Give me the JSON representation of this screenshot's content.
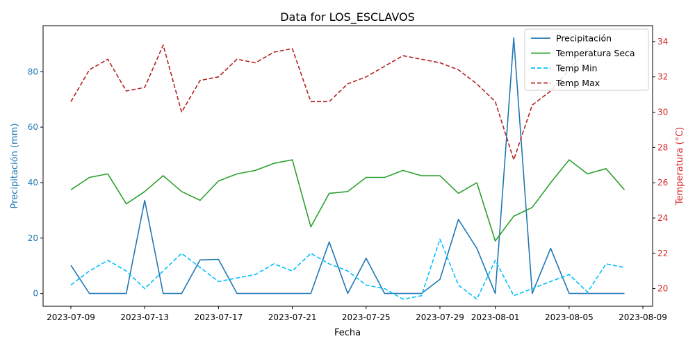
{
  "chart_data": {
    "type": "line",
    "title": "Data for LOS_ESCLAVOS",
    "xlabel": "Fecha",
    "ylabel_left": "Precipitación (mm)",
    "ylabel_right": "Temperatura (°C)",
    "left_axis_color": "#1f77b4",
    "right_axis_color": "#d62728",
    "dates": [
      "2023-07-09",
      "2023-07-10",
      "2023-07-11",
      "2023-07-12",
      "2023-07-13",
      "2023-07-14",
      "2023-07-15",
      "2023-07-16",
      "2023-07-17",
      "2023-07-18",
      "2023-07-19",
      "2023-07-20",
      "2023-07-21",
      "2023-07-22",
      "2023-07-23",
      "2023-07-24",
      "2023-07-25",
      "2023-07-26",
      "2023-07-27",
      "2023-07-28",
      "2023-07-29",
      "2023-07-30",
      "2023-07-31",
      "2023-08-01",
      "2023-08-02",
      "2023-08-03",
      "2023-08-04",
      "2023-08-05",
      "2023-08-06",
      "2023-08-07",
      "2023-08-08"
    ],
    "x_ticks": [
      "2023-07-09",
      "2023-07-13",
      "2023-07-17",
      "2023-07-21",
      "2023-07-25",
      "2023-07-29",
      "2023-08-01",
      "2023-08-05",
      "2023-08-09"
    ],
    "y_left_ticks": [
      0,
      20,
      40,
      60,
      80
    ],
    "y_left_range": [
      -4.6,
      96.6
    ],
    "y_right_ticks": [
      20,
      22,
      24,
      26,
      28,
      30,
      32,
      34
    ],
    "y_right_range": [
      19.0,
      34.9
    ],
    "legend_position": "top-right",
    "series": [
      {
        "name": "Precipitación",
        "axis": "left",
        "color": "#1f77b4",
        "dash": "solid",
        "values": [
          10.2,
          0,
          0,
          0,
          33.6,
          0,
          0,
          12.1,
          12.3,
          0,
          0,
          0,
          0,
          0,
          18.6,
          0,
          12.7,
          0,
          0,
          0,
          5.1,
          26.7,
          16.3,
          0,
          92.2,
          0,
          16.3,
          0,
          0,
          0,
          0
        ]
      },
      {
        "name": "Temperatura Seca",
        "axis": "right",
        "color": "#2ca02c",
        "dash": "solid",
        "values": [
          25.6,
          26.3,
          26.5,
          24.8,
          25.5,
          26.4,
          25.5,
          25.0,
          26.1,
          26.5,
          26.7,
          27.1,
          27.3,
          23.5,
          25.4,
          25.5,
          26.3,
          26.3,
          26.7,
          26.4,
          26.4,
          25.4,
          26.0,
          22.7,
          24.1,
          24.6,
          26.0,
          27.3,
          26.5,
          26.8,
          25.6
        ]
      },
      {
        "name": "Temp Min",
        "axis": "right",
        "color": "#00bfff",
        "dash": "dashed",
        "values": [
          20.2,
          21.0,
          21.6,
          21.0,
          20.0,
          21.0,
          22.0,
          21.2,
          20.4,
          20.6,
          20.8,
          21.4,
          21.0,
          22.0,
          21.4,
          21.0,
          20.2,
          20.0,
          19.4,
          19.6,
          22.8,
          20.2,
          19.4,
          21.6,
          19.6,
          20.0,
          20.4,
          20.8,
          19.8,
          21.4,
          21.2
        ]
      },
      {
        "name": "Temp Max",
        "axis": "right",
        "color": "#b22222",
        "dash": "dashed",
        "values": [
          30.6,
          32.4,
          33.0,
          31.2,
          31.4,
          33.8,
          30.0,
          31.8,
          32.0,
          33.0,
          32.8,
          33.4,
          33.6,
          30.6,
          30.6,
          31.6,
          32.0,
          32.6,
          33.2,
          33.0,
          32.8,
          32.4,
          31.6,
          30.6,
          27.3,
          30.4,
          31.2,
          32.4,
          33.6,
          null,
          null
        ]
      }
    ]
  }
}
